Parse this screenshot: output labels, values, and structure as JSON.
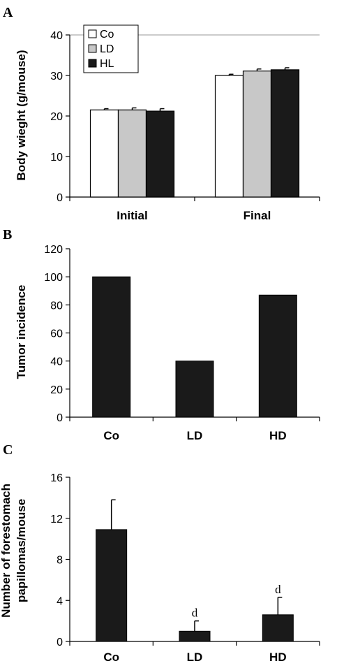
{
  "chart_data": [
    {
      "panel": "A",
      "type": "bar",
      "categories": [
        "Initial",
        "Final"
      ],
      "series": [
        {
          "name": "Co",
          "values": [
            21.5,
            30.0
          ],
          "errors": [
            0.3,
            0.3
          ],
          "color": "#ffffff"
        },
        {
          "name": "LD",
          "values": [
            21.5,
            31.1
          ],
          "errors": [
            0.5,
            0.5
          ],
          "color": "#c8c8c8"
        },
        {
          "name": "HL",
          "values": [
            21.2,
            31.4
          ],
          "errors": [
            0.6,
            0.5
          ],
          "color": "#1a1a1a"
        }
      ],
      "ylabel": "Body wieght (g/mouse)",
      "ylim": [
        0,
        40
      ],
      "yticks": [
        "0",
        "10",
        "20",
        "30",
        "40"
      ],
      "grid": "top line only",
      "legend": "top-left"
    },
    {
      "panel": "B",
      "type": "bar",
      "categories": [
        "Co",
        "LD",
        "HD"
      ],
      "values": [
        100,
        40,
        87
      ],
      "color": "#1a1a1a",
      "ylabel": "Tumor incidence",
      "ylim": [
        0,
        120
      ],
      "yticks": [
        "0",
        "20",
        "40",
        "60",
        "80",
        "100",
        "120"
      ]
    },
    {
      "panel": "C",
      "type": "bar",
      "categories": [
        "Co",
        "LD",
        "HD"
      ],
      "values": [
        10.9,
        1.0,
        2.6
      ],
      "errors": [
        2.9,
        1.0,
        1.7
      ],
      "annotations": [
        "",
        "d",
        "d"
      ],
      "color": "#1a1a1a",
      "ylabel": [
        "Number of forestomach",
        "papillomas/mouse"
      ],
      "ylim": [
        0,
        16
      ],
      "yticks": [
        "0",
        "4",
        "8",
        "12",
        "16"
      ]
    }
  ]
}
